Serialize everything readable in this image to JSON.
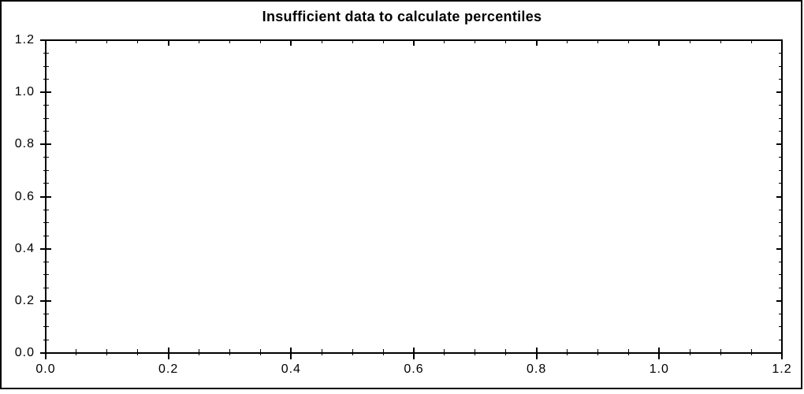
{
  "chart_data": {
    "type": "scatter",
    "title": "Insufficient data to calculate percentiles",
    "xlabel": "",
    "ylabel": "",
    "xlim": [
      0.0,
      1.2
    ],
    "ylim": [
      0.0,
      1.2
    ],
    "x_major_ticks": [
      0.0,
      0.2,
      0.4,
      0.6,
      0.8,
      1.0,
      1.2
    ],
    "y_major_ticks": [
      0.0,
      0.2,
      0.4,
      0.6,
      0.8,
      1.0,
      1.2
    ],
    "x_tick_labels": [
      "0.0",
      "0.2",
      "0.4",
      "0.6",
      "0.8",
      "1.0",
      "1.2"
    ],
    "y_tick_labels": [
      "0.0",
      "0.2",
      "0.4",
      "0.6",
      "0.8",
      "1.0",
      "1.2"
    ],
    "minor_tick_step": 0.05,
    "grid": false,
    "legend": null,
    "series": []
  },
  "colors": {
    "axis": "#000000",
    "text": "#000000",
    "background": "#ffffff",
    "border": "#000000"
  }
}
